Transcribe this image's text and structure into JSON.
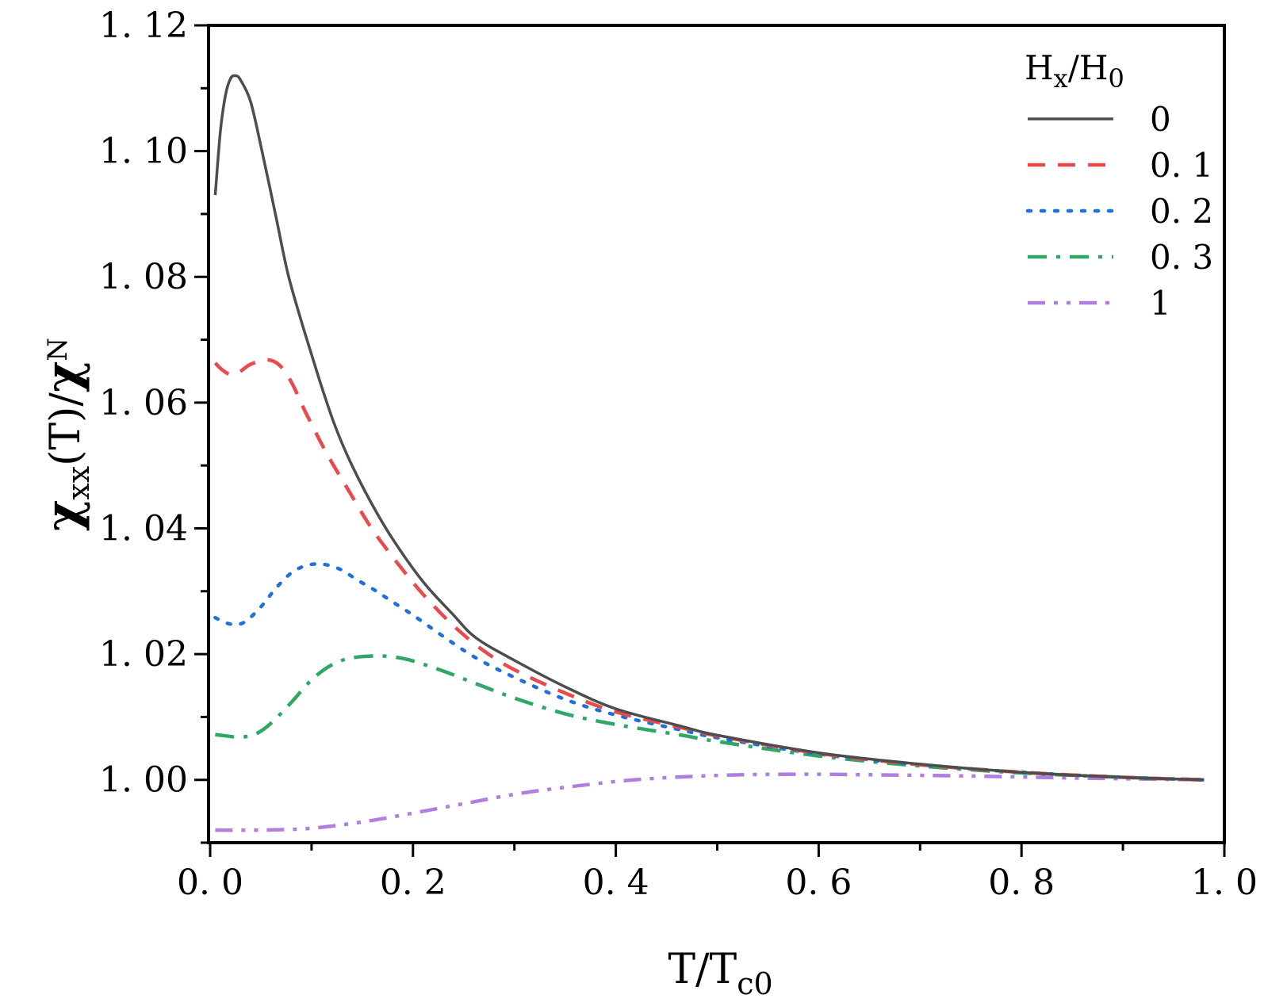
{
  "chart_data": {
    "type": "line",
    "title": "",
    "xlabel": {
      "main": "T/T",
      "sub": "c0"
    },
    "ylabel": {
      "chi1": "χ",
      "sub1": "xx",
      "mid": "(T)/",
      "chi2": "χ",
      "sub2": "N"
    },
    "xlim": [
      0.0,
      1.0
    ],
    "ylim": [
      0.99,
      1.12
    ],
    "x_ticks": [
      0.0,
      0.2,
      0.4,
      0.6,
      0.8,
      1.0
    ],
    "x_tick_labels": [
      "0. 0",
      "0. 2",
      "0. 4",
      "0. 6",
      "0. 8",
      "1. 0"
    ],
    "x_minor_step": 0.1,
    "y_ticks": [
      1.0,
      1.02,
      1.04,
      1.06,
      1.08,
      1.1,
      1.12
    ],
    "y_tick_labels": [
      "1. 00",
      "1. 02",
      "1. 04",
      "1. 06",
      "1. 08",
      "1. 10",
      "1. 12"
    ],
    "y_minor_step": 0.01,
    "grid": false,
    "legend": {
      "title_main": "H",
      "title_sub1": "x",
      "title_mid": "/H",
      "title_sub2": "0",
      "placement": "top-right"
    },
    "series": [
      {
        "name": "0",
        "color": "#4d4d4d",
        "dash": "solid",
        "x": [
          0.005,
          0.01,
          0.015,
          0.02,
          0.025,
          0.03,
          0.04,
          0.051,
          0.065,
          0.077,
          0.093,
          0.108,
          0.122,
          0.137,
          0.158,
          0.18,
          0.21,
          0.24,
          0.262,
          0.3,
          0.35,
          0.4,
          0.465,
          0.5,
          0.6,
          0.7,
          0.8,
          0.9,
          0.98
        ],
        "y": [
          1.093,
          1.103,
          1.1088,
          1.1115,
          1.112,
          1.1113,
          1.1078,
          1.1001,
          1.0895,
          1.0803,
          1.0713,
          1.0635,
          1.0568,
          1.051,
          1.0443,
          1.0383,
          1.0315,
          1.0262,
          1.0226,
          1.019,
          1.0148,
          1.0113,
          1.0085,
          1.0071,
          1.0043,
          1.0025,
          1.0012,
          1.0004,
          1.0
        ]
      },
      {
        "name": "0. 1",
        "color": "#e94a4a",
        "dash": "dashed",
        "x": [
          0.005,
          0.012,
          0.021,
          0.03,
          0.04,
          0.056,
          0.068,
          0.08,
          0.094,
          0.115,
          0.137,
          0.16,
          0.186,
          0.21,
          0.24,
          0.27,
          0.3,
          0.35,
          0.4,
          0.465,
          0.5,
          0.6,
          0.7,
          0.8,
          0.9,
          0.98
        ],
        "y": [
          1.0663,
          1.0652,
          1.0644,
          1.065,
          1.0661,
          1.0668,
          1.066,
          1.0633,
          1.0585,
          1.0519,
          1.0459,
          1.0398,
          1.0342,
          1.0295,
          1.0245,
          1.0205,
          1.0175,
          1.0138,
          1.0108,
          1.0083,
          1.007,
          1.0042,
          1.0024,
          1.0012,
          1.0004,
          1.0
        ]
      },
      {
        "name": "0. 2",
        "color": "#1f6fdc",
        "dash": "dotted",
        "x": [
          0.005,
          0.015,
          0.025,
          0.035,
          0.05,
          0.065,
          0.08,
          0.095,
          0.111,
          0.128,
          0.145,
          0.162,
          0.178,
          0.2,
          0.23,
          0.262,
          0.3,
          0.35,
          0.4,
          0.465,
          0.5,
          0.6,
          0.7,
          0.8,
          0.9,
          0.98
        ],
        "y": [
          1.0258,
          1.025,
          1.0247,
          1.0252,
          1.0275,
          1.0305,
          1.0329,
          1.0341,
          1.0343,
          1.0335,
          1.0318,
          1.0302,
          1.0285,
          1.0262,
          1.0228,
          1.0194,
          1.0163,
          1.0128,
          1.0103,
          1.0079,
          1.0067,
          1.0041,
          1.0024,
          1.0012,
          1.0004,
          1.0
        ]
      },
      {
        "name": "0. 3",
        "color": "#2fa866",
        "dash": "dashdot",
        "x": [
          0.005,
          0.015,
          0.03,
          0.045,
          0.06,
          0.08,
          0.1,
          0.12,
          0.14,
          0.168,
          0.19,
          0.21,
          0.235,
          0.262,
          0.3,
          0.35,
          0.4,
          0.465,
          0.5,
          0.6,
          0.7,
          0.8,
          0.9,
          0.98
        ],
        "y": [
          1.0072,
          1.007,
          1.0068,
          1.0073,
          1.009,
          1.0123,
          1.0159,
          1.0183,
          1.0194,
          1.0197,
          1.0193,
          1.0184,
          1.017,
          1.0153,
          1.013,
          1.0105,
          1.0088,
          1.0071,
          1.0061,
          1.0038,
          1.0022,
          1.0011,
          1.0004,
          1.0
        ]
      },
      {
        "name": "1",
        "color": "#b07ee0",
        "dash": "dashdotdot",
        "x": [
          0.005,
          0.05,
          0.1,
          0.15,
          0.2,
          0.25,
          0.3,
          0.35,
          0.418,
          0.5,
          0.575,
          0.65,
          0.75,
          0.85,
          0.93,
          0.98
        ],
        "y": [
          0.992,
          0.992,
          0.9923,
          0.9933,
          0.9947,
          0.9962,
          0.9977,
          0.9988,
          1.0,
          1.0007,
          1.0009,
          1.0008,
          1.0006,
          1.0003,
          1.0001,
          1.0
        ]
      }
    ]
  }
}
